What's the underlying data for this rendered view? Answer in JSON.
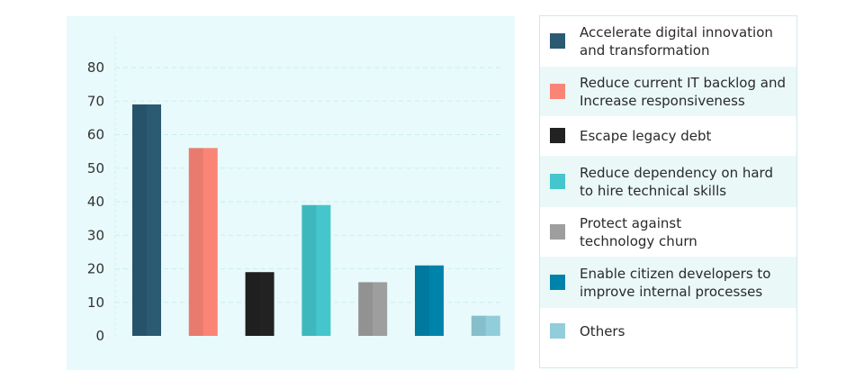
{
  "chart_data": {
    "type": "bar",
    "title": "",
    "xlabel": "",
    "ylabel": "",
    "ylim": [
      0,
      80
    ],
    "yticks": [
      0,
      10,
      20,
      30,
      40,
      50,
      60,
      70,
      80
    ],
    "grid": true,
    "legend_position": "right",
    "categories": [
      "Accelerate digital innovation\nand transformation",
      "Reduce current IT backlog and\nIncrease responsiveness",
      "Escape legacy debt",
      "Reduce dependency on hard\nto hire technical skills",
      "Protect against\ntechnology churn",
      "Enable citizen developers to\nimprove internal processes",
      "Others"
    ],
    "values": [
      69,
      56,
      19,
      39,
      16,
      21,
      6
    ],
    "colors": [
      "#2b5a73",
      "#fa8577",
      "#222222",
      "#44c6cc",
      "#9e9e9e",
      "#0083ab",
      "#92cddb"
    ]
  }
}
